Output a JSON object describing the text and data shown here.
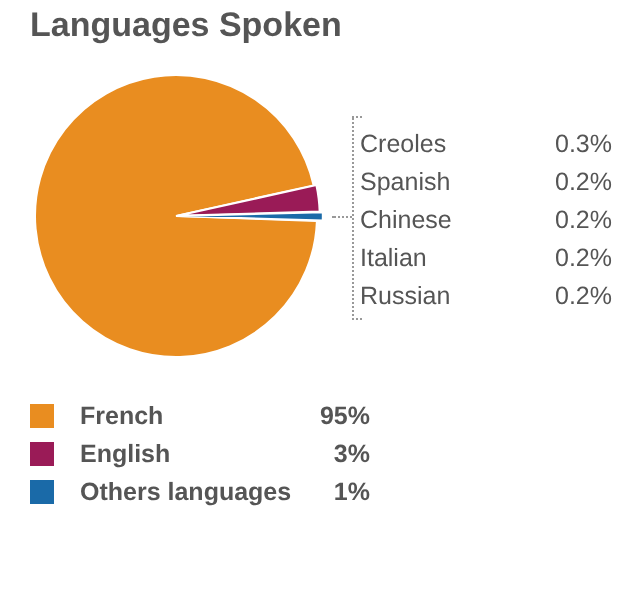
{
  "chart_data": {
    "type": "pie",
    "title": "Languages Spoken",
    "categories": [
      "French",
      "English",
      "Others languages"
    ],
    "values": [
      95,
      3,
      1
    ],
    "colors": [
      "#e98d20",
      "#9a1b57",
      "#1a6aa8"
    ],
    "value_labels": [
      "95%",
      "3%",
      "1%"
    ],
    "legend": "bottom",
    "annotations": [
      "Creoles 0.3%",
      "Spanish 0.2%",
      "Chinese 0.2%",
      "Italian 0.2%",
      "Russian 0.2%"
    ]
  }
}
